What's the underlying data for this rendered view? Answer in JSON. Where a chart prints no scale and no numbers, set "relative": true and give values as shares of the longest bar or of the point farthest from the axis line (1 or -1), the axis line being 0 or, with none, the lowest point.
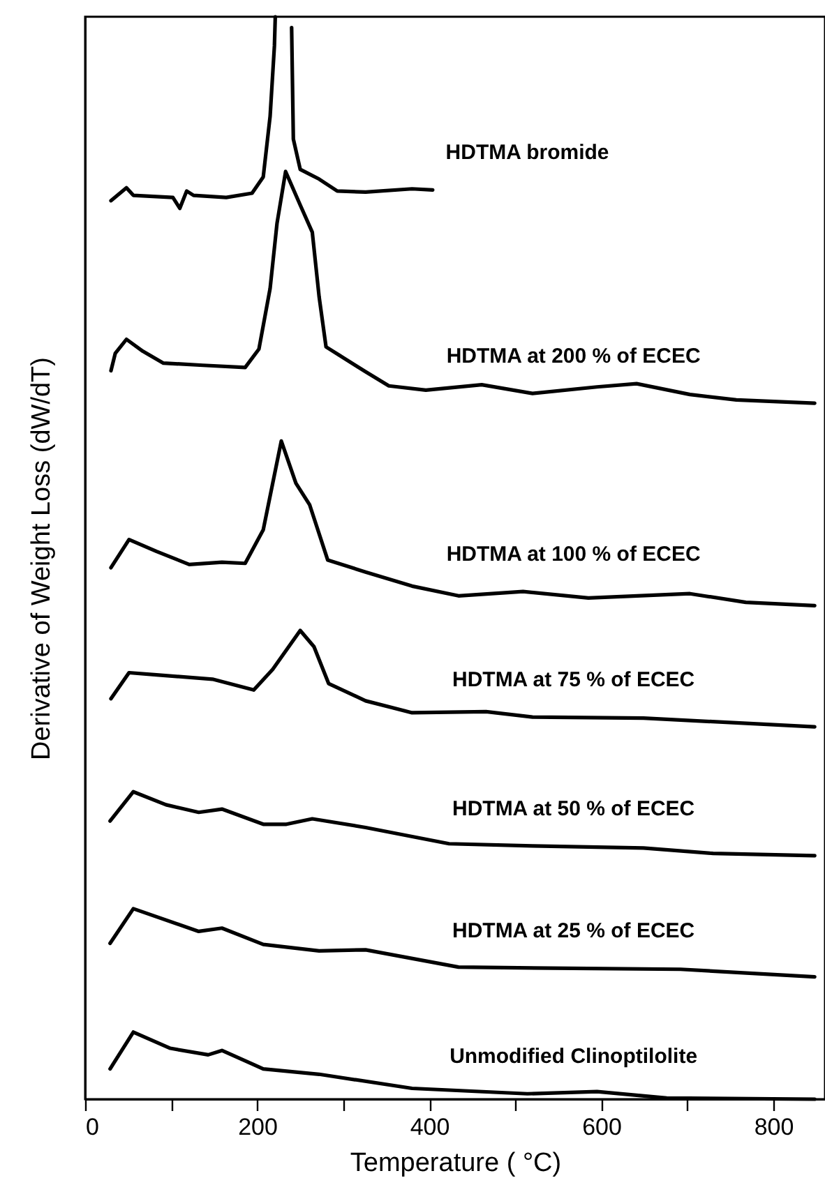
{
  "chart_data": {
    "type": "line",
    "relative": true,
    "xlabel": "Temperature ( °C)",
    "ylabel": "Derivative of Weight Loss (dW/dT)",
    "xlim": [
      0,
      860
    ],
    "xticks": [
      0,
      {
        "value": 100,
        "label": null
      },
      200,
      {
        "value": 300,
        "label": null
      },
      400,
      {
        "value": 500,
        "label": null
      },
      600,
      {
        "value": 700,
        "label": null
      },
      800
    ],
    "grid": false,
    "marker": "none",
    "line_style": "solid",
    "series": [
      {
        "name": "HDTMA bromide",
        "color": "#000000",
        "x": [
          30,
          48,
          56,
          102,
          110,
          118,
          126,
          164,
          194,
          207,
          215,
          220,
          221,
          230,
          240,
          242,
          250,
          272,
          293,
          326,
          380,
          404
        ],
        "values": [
          0.83,
          0.842,
          0.835,
          0.833,
          0.823,
          0.839,
          0.835,
          0.833,
          0.837,
          0.852,
          0.908,
          0.973,
          1.0,
          null,
          0.99,
          0.887,
          0.859,
          0.85,
          0.839,
          0.838,
          0.841,
          0.84
        ]
      },
      {
        "name": "HDTMA at 200 % of ECEC",
        "color": "#000000",
        "x": [
          30,
          35,
          48,
          67,
          91,
          137,
          186,
          202,
          215,
          223,
          233,
          250,
          264,
          272,
          280,
          296,
          326,
          353,
          396,
          461,
          520,
          595,
          641,
          703,
          757,
          848
        ],
        "values": [
          0.673,
          0.689,
          0.702,
          0.691,
          0.68,
          0.678,
          0.676,
          0.693,
          0.749,
          0.809,
          0.857,
          0.826,
          0.801,
          0.741,
          0.695,
          0.687,
          0.672,
          0.659,
          0.655,
          0.66,
          0.652,
          0.658,
          0.661,
          0.651,
          0.646,
          0.643
        ]
      },
      {
        "name": "HDTMA at 100 % of ECEC",
        "color": "#000000",
        "x": [
          30,
          51,
          83,
          121,
          159,
          186,
          207,
          228,
          245,
          261,
          282,
          326,
          380,
          434,
          509,
          585,
          703,
          768,
          848
        ],
        "values": [
          0.491,
          0.517,
          0.506,
          0.494,
          0.496,
          0.495,
          0.526,
          0.608,
          0.569,
          0.549,
          0.498,
          0.487,
          0.474,
          0.465,
          0.469,
          0.463,
          0.467,
          0.459,
          0.456
        ]
      },
      {
        "name": "HDTMA at 75 % of ECEC",
        "color": "#000000",
        "x": [
          30,
          51,
          83,
          148,
          196,
          218,
          250,
          266,
          283,
          326,
          380,
          466,
          520,
          649,
          848
        ],
        "values": [
          0.37,
          0.394,
          0.392,
          0.388,
          0.378,
          0.397,
          0.433,
          0.418,
          0.384,
          0.368,
          0.357,
          0.358,
          0.353,
          0.352,
          0.344
        ]
      },
      {
        "name": "HDTMA at 50 % of ECEC",
        "color": "#000000",
        "x": [
          29,
          56,
          94,
          132,
          159,
          207,
          234,
          264,
          326,
          423,
          520,
          649,
          730,
          848
        ],
        "values": [
          0.257,
          0.284,
          0.272,
          0.265,
          0.268,
          0.254,
          0.254,
          0.259,
          0.251,
          0.236,
          0.234,
          0.232,
          0.227,
          0.225
        ]
      },
      {
        "name": "HDTMA at 25 % of ECEC",
        "color": "#000000",
        "x": [
          29,
          56,
          132,
          159,
          207,
          272,
          326,
          434,
          541,
          692,
          848
        ],
        "values": [
          0.144,
          0.176,
          0.155,
          0.158,
          0.143,
          0.137,
          0.138,
          0.122,
          0.121,
          0.12,
          0.113
        ]
      },
      {
        "name": "Unmodified Clinoptilolite",
        "color": "#000000",
        "x": [
          29,
          56,
          99,
          143,
          159,
          207,
          272,
          380,
          514,
          595,
          676,
          848
        ],
        "values": [
          0.028,
          0.062,
          0.047,
          0.041,
          0.045,
          0.028,
          0.023,
          0.01,
          0.005,
          0.007,
          0.001,
          0.0
        ]
      }
    ],
    "legend": false
  }
}
